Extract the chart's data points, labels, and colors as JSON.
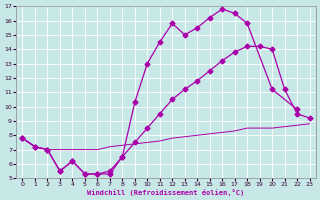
{
  "background_color": "#c8e8e8",
  "line_color": "#aa00aa",
  "xlabel": "Windchill (Refroidissement éolien,°C)",
  "xlim": [
    -0.5,
    23.5
  ],
  "ylim": [
    5,
    17
  ],
  "xticks": [
    0,
    1,
    2,
    3,
    4,
    5,
    6,
    7,
    8,
    9,
    10,
    11,
    12,
    13,
    14,
    15,
    16,
    17,
    18,
    19,
    20,
    21,
    22,
    23
  ],
  "yticks": [
    5,
    6,
    7,
    8,
    9,
    10,
    11,
    12,
    13,
    14,
    15,
    16,
    17
  ],
  "series": [
    {
      "x": [
        0,
        1,
        2,
        3,
        4,
        5,
        6,
        7,
        8,
        9,
        10,
        11,
        12,
        13,
        14,
        15,
        16,
        17,
        18,
        20,
        22
      ],
      "y": [
        7.8,
        7.2,
        7.0,
        5.5,
        6.2,
        5.3,
        5.3,
        5.3,
        6.5,
        10.3,
        13.0,
        14.5,
        15.8,
        15.0,
        15.5,
        16.2,
        16.8,
        16.5,
        15.8,
        11.2,
        9.8
      ],
      "style": "solid_marker"
    },
    {
      "x": [
        0,
        1,
        2,
        3,
        4,
        5,
        6,
        7,
        8,
        9,
        10,
        11,
        12,
        13,
        14,
        15,
        16,
        17,
        18,
        19,
        20,
        21,
        22,
        23
      ],
      "y": [
        7.8,
        7.2,
        7.0,
        5.5,
        6.2,
        5.3,
        5.3,
        5.5,
        6.5,
        7.5,
        8.5,
        9.5,
        10.5,
        11.2,
        11.8,
        12.5,
        13.2,
        13.8,
        14.2,
        14.2,
        14.0,
        11.2,
        9.5,
        9.2
      ],
      "style": "solid_marker"
    },
    {
      "x": [
        0,
        1,
        2,
        3,
        4,
        5,
        6,
        7,
        8,
        9,
        10,
        11,
        12,
        13,
        14,
        15,
        16,
        17,
        18,
        19,
        20,
        21,
        22,
        23
      ],
      "y": [
        7.8,
        7.2,
        7.0,
        7.0,
        7.0,
        7.0,
        7.0,
        7.2,
        7.3,
        7.4,
        7.5,
        7.6,
        7.8,
        7.9,
        8.0,
        8.1,
        8.2,
        8.3,
        8.5,
        8.5,
        8.5,
        8.6,
        8.7,
        8.8
      ],
      "style": "thin_solid"
    }
  ]
}
